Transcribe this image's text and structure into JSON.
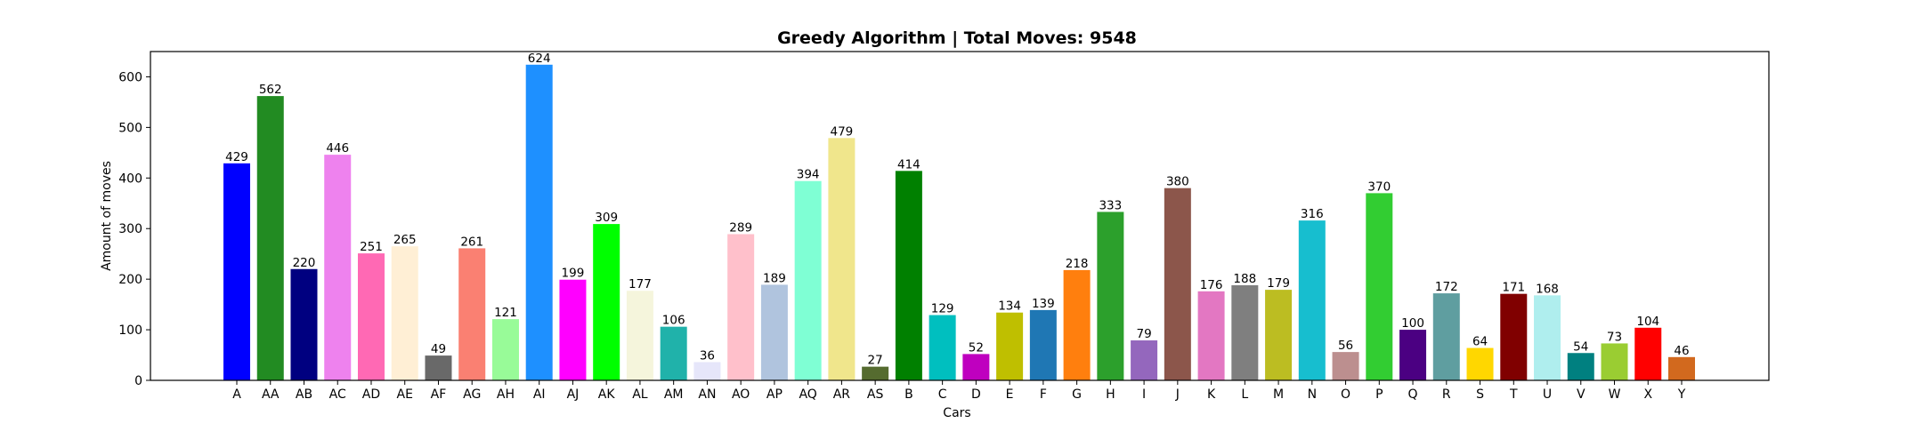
{
  "chart_data": {
    "type": "bar",
    "title": "Greedy Algorithm | Total Moves: 9548",
    "xlabel": "Cars",
    "ylabel": "Amount of moves",
    "ylim": [
      0,
      650
    ],
    "yticks": [
      0,
      100,
      200,
      300,
      400,
      500,
      600
    ],
    "grid": false,
    "legend": "none",
    "categories": [
      "A",
      "AA",
      "AB",
      "AC",
      "AD",
      "AE",
      "AF",
      "AG",
      "AH",
      "AI",
      "AJ",
      "AK",
      "AL",
      "AM",
      "AN",
      "AO",
      "AP",
      "AQ",
      "AR",
      "AS",
      "B",
      "C",
      "D",
      "E",
      "F",
      "G",
      "H",
      "I",
      "J",
      "K",
      "L",
      "M",
      "N",
      "O",
      "P",
      "Q",
      "R",
      "S",
      "T",
      "U",
      "V",
      "W",
      "X",
      "Y"
    ],
    "values": [
      429,
      562,
      220,
      446,
      251,
      265,
      49,
      261,
      121,
      624,
      199,
      309,
      177,
      106,
      36,
      289,
      189,
      394,
      479,
      27,
      414,
      129,
      52,
      134,
      139,
      218,
      333,
      79,
      380,
      176,
      188,
      179,
      316,
      56,
      370,
      100,
      172,
      64,
      171,
      168,
      54,
      73,
      104,
      46
    ],
    "colors": [
      "#0000ff",
      "#228b22",
      "#000080",
      "#ee82ee",
      "#ff69b4",
      "#ffefd5",
      "#696969",
      "#fa8072",
      "#98fb98",
      "#1e90ff",
      "#ff00ff",
      "#00ff00",
      "#f5f5dc",
      "#20b2aa",
      "#e6e6fa",
      "#ffc0cb",
      "#b0c4de",
      "#7fffd4",
      "#f0e68c",
      "#556b2f",
      "#008000",
      "#00bfbf",
      "#bf00bf",
      "#bfbf00",
      "#1f77b4",
      "#ff7f0e",
      "#2ca02c",
      "#9467bd",
      "#8c564b",
      "#e377c2",
      "#7f7f7f",
      "#bcbd22",
      "#17becf",
      "#bc8f8f",
      "#32cd32",
      "#4b0082",
      "#5f9ea0",
      "#ffd700",
      "#800000",
      "#afeeee",
      "#008080",
      "#9acd32",
      "#ff0000",
      "#d2691e"
    ]
  }
}
